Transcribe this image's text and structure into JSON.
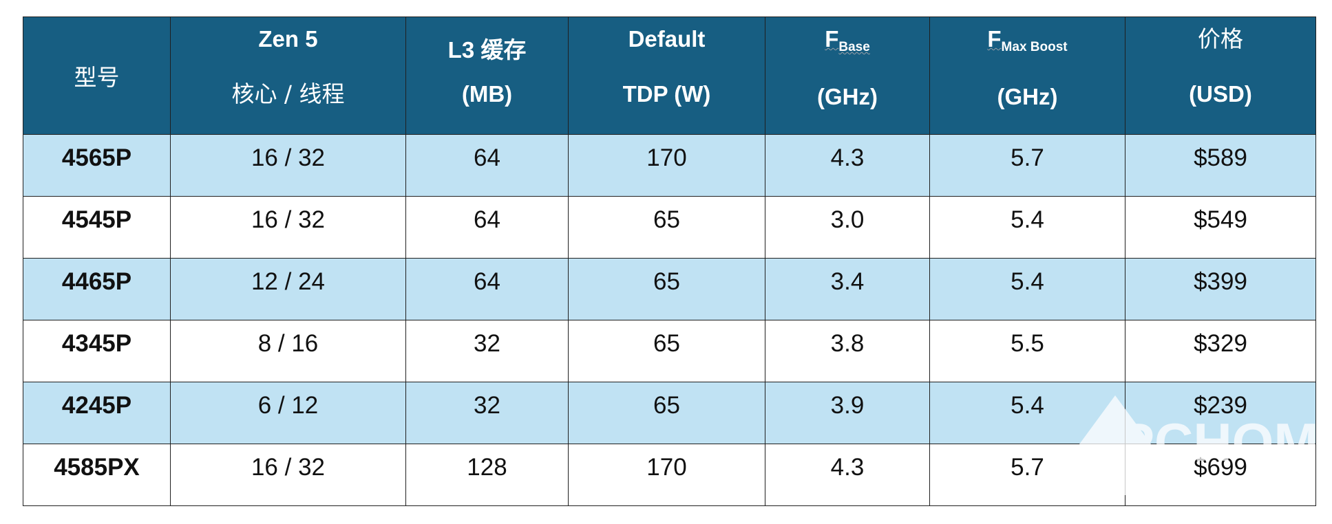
{
  "table": {
    "headers": [
      {
        "line1": "型号",
        "line2": ""
      },
      {
        "line1": "Zen 5",
        "line2": "核心 / 线程"
      },
      {
        "line1": "L3 缓存",
        "line2": "(MB)"
      },
      {
        "line1": "Default",
        "line2": "TDP (W)"
      },
      {
        "line1_main": "F",
        "line1_sub": "Base",
        "line2": "(GHz)"
      },
      {
        "line1_main": "F",
        "line1_sub": "Max Boost",
        "line2": "(GHz)"
      },
      {
        "line1": "价格",
        "line2": "(USD)"
      }
    ],
    "rows": [
      [
        "4565P",
        "16 / 32",
        "64",
        "170",
        "4.3",
        "5.7",
        "$589"
      ],
      [
        "4545P",
        "16 / 32",
        "64",
        "65",
        "3.0",
        "5.4",
        "$549"
      ],
      [
        "4465P",
        "12 / 24",
        "64",
        "65",
        "3.4",
        "5.4",
        "$399"
      ],
      [
        "4345P",
        "8 / 16",
        "32",
        "65",
        "3.8",
        "5.5",
        "$329"
      ],
      [
        "4245P",
        "6 / 12",
        "32",
        "65",
        "3.9",
        "5.4",
        "$239"
      ],
      [
        "4585PX",
        "16 / 32",
        "128",
        "170",
        "4.3",
        "5.7",
        "$699"
      ]
    ],
    "colors": {
      "header_bg": "#175e82",
      "header_text": "#ffffff",
      "shaded_row": "#c0e2f3"
    }
  },
  "watermark": {
    "text": "PCHOME",
    "icon": "house-logo-watermark"
  }
}
